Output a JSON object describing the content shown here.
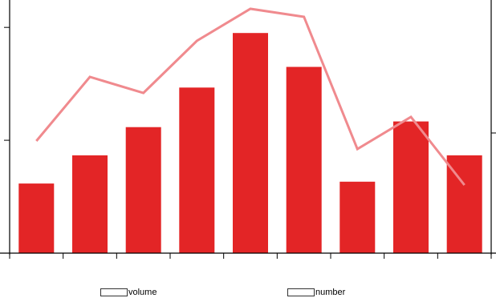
{
  "chart_data": {
    "type": "bar",
    "categories": [
      "",
      "",
      "",
      "",
      "",
      "",
      "",
      "",
      ""
    ],
    "series": [
      {
        "name": "volume",
        "type": "bar",
        "axis": "left",
        "color": "#e32526",
        "values": [
          37,
          52,
          67,
          88,
          117,
          99,
          38,
          70,
          52
        ]
      },
      {
        "name": "number",
        "type": "line",
        "axis": "right",
        "color": "#f08a8e",
        "values": [
          1.4,
          2.2,
          2.0,
          2.65,
          3.05,
          2.95,
          1.3,
          1.7,
          0.85
        ]
      }
    ],
    "ylim_left": [
      0,
      132
    ],
    "ylim_right": [
      0,
      3.1
    ],
    "left_ticks": [
      0,
      60,
      120
    ],
    "right_ticks": [
      0,
      1.5
    ],
    "grid": false,
    "legend_position": "bottom",
    "title": "",
    "xlabel": "",
    "ylabel": ""
  }
}
